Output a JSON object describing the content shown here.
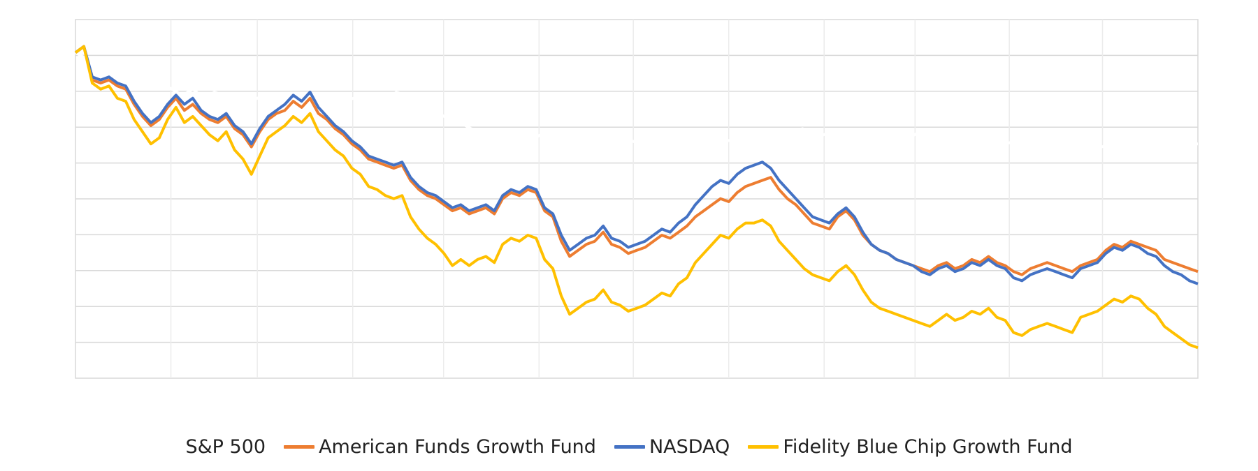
{
  "chart_data": {
    "type": "line",
    "title": "",
    "xlabel": "",
    "ylabel": "",
    "grid": true,
    "legend_position": "bottom",
    "series": [
      {
        "name": "S&P 500",
        "color": "#ffffff",
        "values": [
          1.0,
          0.98,
          0.96,
          0.93,
          0.94,
          0.92,
          0.91,
          0.92,
          0.9,
          0.88,
          0.86,
          0.88,
          0.85,
          0.87,
          0.86,
          0.84,
          0.83,
          0.85,
          0.86,
          0.84,
          0.82,
          0.83,
          0.81,
          0.8,
          0.83,
          0.84,
          0.85,
          0.83,
          0.81,
          0.84,
          0.87,
          0.86,
          0.84,
          0.82,
          0.8,
          0.78,
          0.77,
          0.75,
          0.74,
          0.72,
          0.71,
          0.72,
          0.73,
          0.72,
          0.74,
          0.73,
          0.71,
          0.72,
          0.7,
          0.72,
          0.7,
          0.71,
          0.71,
          0.7,
          0.7,
          0.71,
          0.72,
          0.7,
          0.71,
          0.69,
          0.7,
          0.71,
          0.72,
          0.73,
          0.71,
          0.72,
          0.74,
          0.73,
          0.75,
          0.74,
          0.73,
          0.74,
          0.72,
          0.73,
          0.74,
          0.73,
          0.72,
          0.73,
          0.72,
          0.74,
          0.73,
          0.72,
          0.71,
          0.73,
          0.72,
          0.71,
          0.72,
          0.7,
          0.71,
          0.7,
          0.71,
          0.69,
          0.7,
          0.71,
          0.72,
          0.7,
          0.69,
          0.7,
          0.71,
          0.7,
          0.71,
          0.7,
          0.69,
          0.69,
          0.7,
          0.7
        ]
      },
      {
        "name": "American Funds Growth Fund",
        "color": "#ed7d31",
        "values": [
          1.0,
          1.02,
          0.91,
          0.9,
          0.91,
          0.89,
          0.88,
          0.83,
          0.79,
          0.76,
          0.78,
          0.82,
          0.85,
          0.81,
          0.83,
          0.8,
          0.78,
          0.77,
          0.79,
          0.75,
          0.73,
          0.69,
          0.74,
          0.78,
          0.8,
          0.81,
          0.84,
          0.82,
          0.85,
          0.8,
          0.78,
          0.75,
          0.73,
          0.7,
          0.68,
          0.65,
          0.64,
          0.63,
          0.62,
          0.63,
          0.58,
          0.55,
          0.53,
          0.52,
          0.5,
          0.48,
          0.49,
          0.47,
          0.48,
          0.49,
          0.47,
          0.52,
          0.54,
          0.53,
          0.55,
          0.54,
          0.48,
          0.46,
          0.38,
          0.33,
          0.35,
          0.37,
          0.38,
          0.41,
          0.37,
          0.36,
          0.34,
          0.35,
          0.36,
          0.38,
          0.4,
          0.39,
          0.41,
          0.43,
          0.46,
          0.48,
          0.5,
          0.52,
          0.51,
          0.54,
          0.56,
          0.57,
          0.58,
          0.59,
          0.55,
          0.52,
          0.5,
          0.47,
          0.44,
          0.43,
          0.42,
          0.46,
          0.48,
          0.45,
          0.4,
          0.37,
          0.35,
          0.34,
          0.32,
          0.31,
          0.3,
          0.29,
          0.28,
          0.3,
          0.31,
          0.29,
          0.3,
          0.32,
          0.31,
          0.33,
          0.31,
          0.3,
          0.28,
          0.27,
          0.29,
          0.3,
          0.31,
          0.3,
          0.29,
          0.28,
          0.3,
          0.31,
          0.32,
          0.35,
          0.37,
          0.36,
          0.38,
          0.37,
          0.36,
          0.35,
          0.32,
          0.31,
          0.3,
          0.29,
          0.28
        ]
      },
      {
        "name": "NASDAQ",
        "color": "#4472c4",
        "values": [
          1.0,
          1.02,
          0.92,
          0.91,
          0.92,
          0.9,
          0.89,
          0.84,
          0.8,
          0.77,
          0.79,
          0.83,
          0.86,
          0.83,
          0.85,
          0.81,
          0.79,
          0.78,
          0.8,
          0.76,
          0.74,
          0.7,
          0.75,
          0.79,
          0.81,
          0.83,
          0.86,
          0.84,
          0.87,
          0.82,
          0.79,
          0.76,
          0.74,
          0.71,
          0.69,
          0.66,
          0.65,
          0.64,
          0.63,
          0.64,
          0.59,
          0.56,
          0.54,
          0.53,
          0.51,
          0.49,
          0.5,
          0.48,
          0.49,
          0.5,
          0.48,
          0.53,
          0.55,
          0.54,
          0.56,
          0.55,
          0.49,
          0.47,
          0.4,
          0.35,
          0.37,
          0.39,
          0.4,
          0.43,
          0.39,
          0.38,
          0.36,
          0.37,
          0.38,
          0.4,
          0.42,
          0.41,
          0.44,
          0.46,
          0.5,
          0.53,
          0.56,
          0.58,
          0.57,
          0.6,
          0.62,
          0.63,
          0.64,
          0.62,
          0.58,
          0.55,
          0.52,
          0.49,
          0.46,
          0.45,
          0.44,
          0.47,
          0.49,
          0.46,
          0.41,
          0.37,
          0.35,
          0.34,
          0.32,
          0.31,
          0.3,
          0.28,
          0.27,
          0.29,
          0.3,
          0.28,
          0.29,
          0.31,
          0.3,
          0.32,
          0.3,
          0.29,
          0.26,
          0.25,
          0.27,
          0.28,
          0.29,
          0.28,
          0.27,
          0.26,
          0.29,
          0.3,
          0.31,
          0.34,
          0.36,
          0.35,
          0.37,
          0.36,
          0.34,
          0.33,
          0.3,
          0.28,
          0.27,
          0.25,
          0.24
        ]
      },
      {
        "name": "Fidelity Blue Chip Growth Fund",
        "color": "#ffc000",
        "values": [
          1.0,
          1.02,
          0.9,
          0.88,
          0.89,
          0.85,
          0.84,
          0.78,
          0.74,
          0.7,
          0.72,
          0.78,
          0.82,
          0.77,
          0.79,
          0.76,
          0.73,
          0.71,
          0.74,
          0.68,
          0.65,
          0.6,
          0.66,
          0.72,
          0.74,
          0.76,
          0.79,
          0.77,
          0.8,
          0.74,
          0.71,
          0.68,
          0.66,
          0.62,
          0.6,
          0.56,
          0.55,
          0.53,
          0.52,
          0.53,
          0.46,
          0.42,
          0.39,
          0.37,
          0.34,
          0.3,
          0.32,
          0.3,
          0.32,
          0.33,
          0.31,
          0.37,
          0.39,
          0.38,
          0.4,
          0.39,
          0.32,
          0.29,
          0.2,
          0.14,
          0.16,
          0.18,
          0.19,
          0.22,
          0.18,
          0.17,
          0.15,
          0.16,
          0.17,
          0.19,
          0.21,
          0.2,
          0.24,
          0.26,
          0.31,
          0.34,
          0.37,
          0.4,
          0.39,
          0.42,
          0.44,
          0.44,
          0.45,
          0.43,
          0.38,
          0.35,
          0.32,
          0.29,
          0.27,
          0.26,
          0.25,
          0.28,
          0.3,
          0.27,
          0.22,
          0.18,
          0.16,
          0.15,
          0.14,
          0.13,
          0.12,
          0.11,
          0.1,
          0.12,
          0.14,
          0.12,
          0.13,
          0.15,
          0.14,
          0.16,
          0.13,
          0.12,
          0.08,
          0.07,
          0.09,
          0.1,
          0.11,
          0.1,
          0.09,
          0.08,
          0.13,
          0.14,
          0.15,
          0.17,
          0.19,
          0.18,
          0.2,
          0.19,
          0.16,
          0.14,
          0.1,
          0.08,
          0.06,
          0.04,
          0.03
        ]
      }
    ]
  }
}
